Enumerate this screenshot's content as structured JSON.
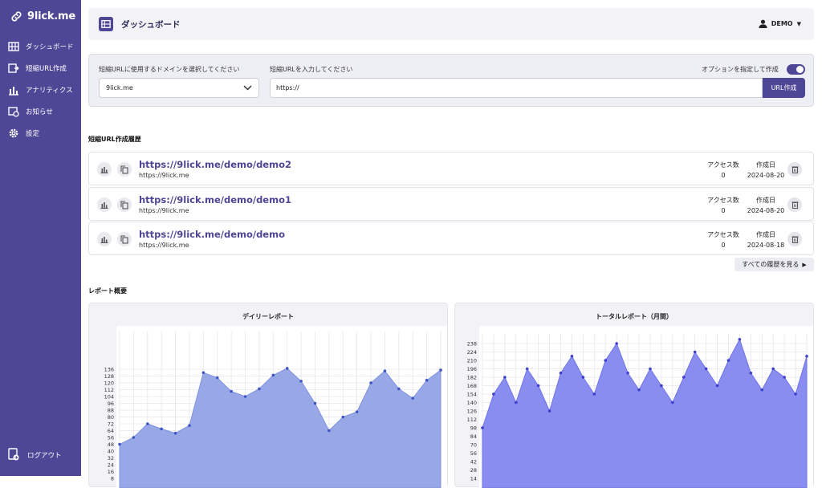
{
  "app": {
    "logo_text": "9lick.me"
  },
  "sidebar": {
    "items": [
      {
        "label": "ダッシュボード",
        "icon": "dashboard-icon"
      },
      {
        "label": "短縮URL作成",
        "icon": "create-url-icon"
      },
      {
        "label": "アナリティクス",
        "icon": "analytics-icon"
      },
      {
        "label": "お知らせ",
        "icon": "notice-icon"
      },
      {
        "label": "設定",
        "icon": "gear-icon"
      }
    ],
    "logout_label": "ログアウト"
  },
  "header": {
    "title": "ダッシュボード",
    "user": "DEMO"
  },
  "form": {
    "domain_label": "短縮URLに使用するドメインを選択してください",
    "domain_value": "9lick.me",
    "url_label": "短縮URLを入力してください",
    "url_value": "https://",
    "option_label": "オプションを指定して作成",
    "option_enabled": true,
    "submit_label": "URL作成"
  },
  "history": {
    "title": "短縮URL作成履歴",
    "access_header": "アクセス数",
    "date_header": "作成日",
    "rows": [
      {
        "url": "https://9lick.me/demo/demo2",
        "dest": "https://9lick.me",
        "access": "0",
        "date": "2024-08-20"
      },
      {
        "url": "https://9lick.me/demo/demo1",
        "dest": "https://9lick.me",
        "access": "0",
        "date": "2024-08-20"
      },
      {
        "url": "https://9lick.me/demo/demo",
        "dest": "https://9lick.me",
        "access": "0",
        "date": "2024-08-18"
      }
    ],
    "more_label": "すべての履歴を見る"
  },
  "report": {
    "title": "レポート概要"
  },
  "colors": {
    "brand": "#4e4796",
    "daily_fill": "#98a8e6",
    "total_fill": "#8a8df0"
  },
  "chart_data": [
    {
      "type": "area",
      "title": "デイリーレポート",
      "yticks": [
        8,
        16,
        24,
        32,
        40,
        48,
        56,
        64,
        72,
        80,
        88,
        96,
        104,
        112,
        120,
        128,
        136
      ],
      "values": [
        48,
        56,
        72,
        66,
        61,
        70,
        132,
        126,
        110,
        104,
        113,
        129,
        137,
        122,
        96,
        64,
        80,
        86,
        120,
        134,
        113,
        102,
        123,
        135
      ],
      "grid": true
    },
    {
      "type": "area",
      "title": "トータルレポート（月間）",
      "yticks": [
        14,
        28,
        42,
        56,
        70,
        84,
        98,
        112,
        126,
        140,
        154,
        168,
        182,
        196,
        210,
        224,
        238
      ],
      "values": [
        98,
        154,
        182,
        140,
        196,
        168,
        126,
        189,
        217,
        182,
        154,
        210,
        238,
        189,
        161,
        196,
        168,
        140,
        182,
        224,
        196,
        168,
        210,
        245,
        189,
        161,
        196,
        182,
        154,
        217
      ],
      "grid": true
    }
  ]
}
